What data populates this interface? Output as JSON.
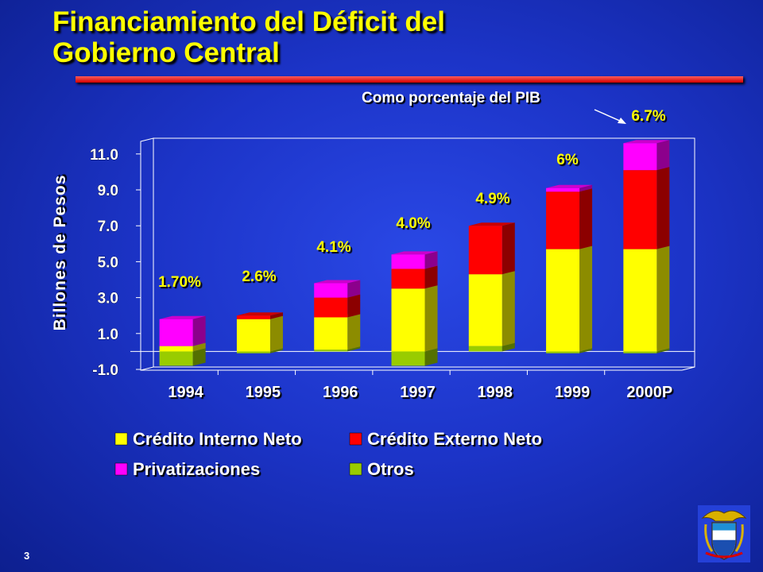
{
  "slide": {
    "title_line1": "Financiamiento del Déficit del",
    "title_line2": "Gobierno Central",
    "subtitle": "Como porcentaje del PIB",
    "page_number": "3"
  },
  "colors": {
    "background": "#1c34c8",
    "title": "#ffff00",
    "accent_rule": "#e00000",
    "pct_labels": "#ffff00",
    "Crédito Interno Neto": "#ffff00",
    "Crédito Externo Neto": "#ff0000",
    "Privatizaciones": "#ff00ff",
    "Otros": "#99cc00"
  },
  "chart_data": {
    "type": "bar",
    "stacked": true,
    "three_d": true,
    "categories": [
      "1994",
      "1995",
      "1996",
      "1997",
      "1998",
      "1999",
      "2000P"
    ],
    "series": [
      {
        "name": "Crédito Interno Neto",
        "values": [
          0.3,
          1.8,
          1.8,
          3.5,
          4.0,
          5.7,
          5.7
        ]
      },
      {
        "name": "Crédito Externo Neto",
        "values": [
          0.0,
          0.2,
          1.1,
          1.1,
          2.7,
          3.2,
          4.4
        ]
      },
      {
        "name": "Privatizaciones",
        "values": [
          1.5,
          0.0,
          0.8,
          0.8,
          0.0,
          0.2,
          1.5
        ]
      },
      {
        "name": "Otros",
        "values": [
          -0.8,
          -0.1,
          0.1,
          -0.8,
          0.3,
          -0.1,
          -0.1
        ]
      }
    ],
    "pct_labels": [
      "1.70%",
      "2.6%",
      "4.1%",
      "4.0%",
      "4.9%",
      "6%",
      "6.7%"
    ],
    "ylabel": "Billones de Pesos",
    "yticks": [
      "11.0",
      "9.0",
      "7.0",
      "5.0",
      "3.0",
      "1.0",
      "-1.0"
    ],
    "ylim": [
      -1.0,
      12.0
    ],
    "legend_position": "bottom"
  }
}
